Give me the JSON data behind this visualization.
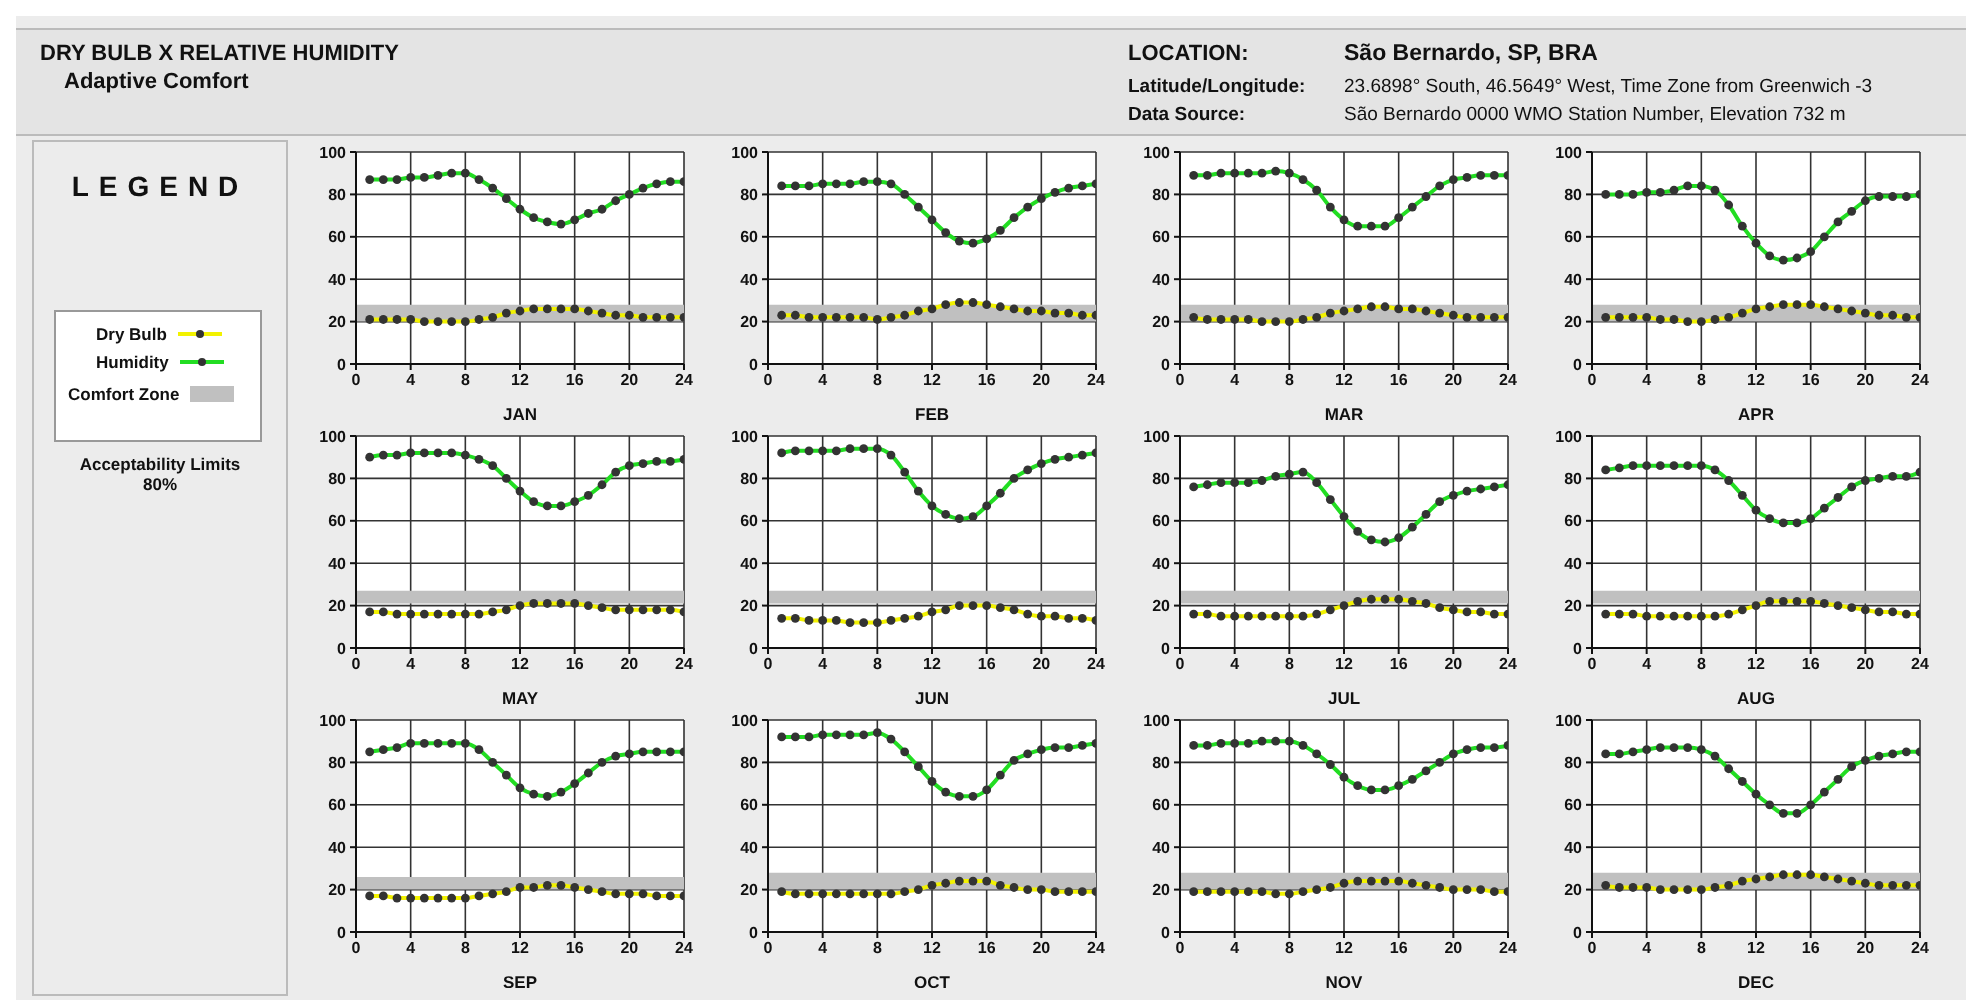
{
  "chart_data": [
    {
      "type": "line",
      "title": "DRY BULB  X  RELATIVE HUMIDITY",
      "subtitle": "Adaptive Comfort",
      "annotations": [
        "LOCATION:",
        "São Bernardo, SP, BRA",
        "Latitude/Longitude:",
        "23.6898° South, 46.5649° West, Time Zone from Greenwich -3",
        "Data Source:",
        "São Bernardo     0000 WMO Station Number, Elevation 732 m",
        "LEGEND",
        "Acceptability Limits 80%"
      ],
      "legend": "left",
      "xlabel": "JAN",
      "x": [
        1,
        2,
        3,
        4,
        5,
        6,
        7,
        8,
        9,
        10,
        11,
        12,
        13,
        14,
        15,
        16,
        17,
        18,
        19,
        20,
        21,
        22,
        23,
        24
      ],
      "xlim": [
        0,
        24
      ],
      "xticks": [
        0,
        4,
        8,
        12,
        16,
        20,
        24
      ],
      "ylim": [
        0,
        100
      ],
      "yticks": [
        0,
        20,
        40,
        60,
        80,
        100
      ],
      "grid": true,
      "marker": "circle",
      "bands": [
        {
          "axis": "y",
          "from": 20,
          "to": 28,
          "label": "Comfort Zone",
          "color": "#c0c0c0"
        }
      ],
      "series": [
        {
          "name": "Dry Bulb",
          "color": "#f2f200",
          "values": [
            21,
            21,
            21,
            21,
            20,
            20,
            20,
            20,
            21,
            22,
            24,
            25,
            26,
            26,
            26,
            26,
            25,
            24,
            23,
            23,
            22,
            22,
            22,
            22
          ]
        },
        {
          "name": "Humidity",
          "color": "#22dd22",
          "values": [
            87,
            87,
            87,
            88,
            88,
            89,
            90,
            90,
            87,
            83,
            78,
            73,
            69,
            67,
            66,
            68,
            71,
            73,
            77,
            80,
            83,
            85,
            86,
            86
          ]
        }
      ]
    },
    {
      "type": "line",
      "xlabel": "FEB",
      "x": [
        1,
        2,
        3,
        4,
        5,
        6,
        7,
        8,
        9,
        10,
        11,
        12,
        13,
        14,
        15,
        16,
        17,
        18,
        19,
        20,
        21,
        22,
        23,
        24
      ],
      "xlim": [
        0,
        24
      ],
      "xticks": [
        0,
        4,
        8,
        12,
        16,
        20,
        24
      ],
      "ylim": [
        0,
        100
      ],
      "yticks": [
        0,
        20,
        40,
        60,
        80,
        100
      ],
      "grid": true,
      "marker": "circle",
      "bands": [
        {
          "axis": "y",
          "from": 20,
          "to": 28,
          "color": "#c0c0c0"
        }
      ],
      "series": [
        {
          "color": "#f2f200",
          "values": [
            23,
            23,
            22,
            22,
            22,
            22,
            22,
            21,
            22,
            23,
            25,
            26,
            28,
            29,
            29,
            28,
            27,
            26,
            25,
            25,
            24,
            24,
            23,
            23
          ]
        },
        {
          "color": "#22dd22",
          "values": [
            84,
            84,
            84,
            85,
            85,
            85,
            86,
            86,
            85,
            80,
            74,
            68,
            62,
            58,
            57,
            59,
            63,
            69,
            74,
            78,
            81,
            83,
            84,
            85
          ]
        }
      ]
    },
    {
      "type": "line",
      "xlabel": "MAR",
      "x": [
        1,
        2,
        3,
        4,
        5,
        6,
        7,
        8,
        9,
        10,
        11,
        12,
        13,
        14,
        15,
        16,
        17,
        18,
        19,
        20,
        21,
        22,
        23,
        24
      ],
      "xlim": [
        0,
        24
      ],
      "xticks": [
        0,
        4,
        8,
        12,
        16,
        20,
        24
      ],
      "ylim": [
        0,
        100
      ],
      "yticks": [
        0,
        20,
        40,
        60,
        80,
        100
      ],
      "grid": true,
      "marker": "circle",
      "bands": [
        {
          "axis": "y",
          "from": 20,
          "to": 28,
          "color": "#c0c0c0"
        }
      ],
      "series": [
        {
          "color": "#f2f200",
          "values": [
            22,
            21,
            21,
            21,
            21,
            20,
            20,
            20,
            21,
            22,
            24,
            25,
            26,
            27,
            27,
            26,
            26,
            25,
            24,
            23,
            22,
            22,
            22,
            22
          ]
        },
        {
          "color": "#22dd22",
          "values": [
            89,
            89,
            90,
            90,
            90,
            90,
            91,
            90,
            87,
            82,
            74,
            68,
            65,
            65,
            65,
            69,
            74,
            79,
            84,
            87,
            88,
            89,
            89,
            89
          ]
        }
      ]
    },
    {
      "type": "line",
      "xlabel": "APR",
      "x": [
        1,
        2,
        3,
        4,
        5,
        6,
        7,
        8,
        9,
        10,
        11,
        12,
        13,
        14,
        15,
        16,
        17,
        18,
        19,
        20,
        21,
        22,
        23,
        24
      ],
      "xlim": [
        0,
        24
      ],
      "xticks": [
        0,
        4,
        8,
        12,
        16,
        20,
        24
      ],
      "ylim": [
        0,
        100
      ],
      "yticks": [
        0,
        20,
        40,
        60,
        80,
        100
      ],
      "grid": true,
      "marker": "circle",
      "bands": [
        {
          "axis": "y",
          "from": 20,
          "to": 28,
          "color": "#c0c0c0"
        }
      ],
      "series": [
        {
          "color": "#f2f200",
          "values": [
            22,
            22,
            22,
            22,
            21,
            21,
            20,
            20,
            21,
            22,
            24,
            26,
            27,
            28,
            28,
            28,
            27,
            26,
            25,
            24,
            23,
            23,
            22,
            22
          ]
        },
        {
          "color": "#22dd22",
          "values": [
            80,
            80,
            80,
            81,
            81,
            82,
            84,
            84,
            82,
            75,
            65,
            57,
            51,
            49,
            50,
            53,
            60,
            67,
            72,
            77,
            79,
            79,
            79,
            80
          ]
        }
      ]
    },
    {
      "type": "line",
      "xlabel": "MAY",
      "x": [
        1,
        2,
        3,
        4,
        5,
        6,
        7,
        8,
        9,
        10,
        11,
        12,
        13,
        14,
        15,
        16,
        17,
        18,
        19,
        20,
        21,
        22,
        23,
        24
      ],
      "xlim": [
        0,
        24
      ],
      "xticks": [
        0,
        4,
        8,
        12,
        16,
        20,
        24
      ],
      "ylim": [
        0,
        100
      ],
      "yticks": [
        0,
        20,
        40,
        60,
        80,
        100
      ],
      "grid": true,
      "marker": "circle",
      "bands": [
        {
          "axis": "y",
          "from": 21,
          "to": 27,
          "color": "#c0c0c0"
        }
      ],
      "series": [
        {
          "color": "#f2f200",
          "values": [
            17,
            17,
            16,
            16,
            16,
            16,
            16,
            16,
            16,
            17,
            18,
            20,
            21,
            21,
            21,
            21,
            20,
            19,
            18,
            18,
            18,
            18,
            18,
            17
          ]
        },
        {
          "color": "#22dd22",
          "values": [
            90,
            91,
            91,
            92,
            92,
            92,
            92,
            91,
            89,
            86,
            80,
            74,
            69,
            67,
            67,
            69,
            72,
            77,
            83,
            86,
            87,
            88,
            88,
            89
          ]
        }
      ]
    },
    {
      "type": "line",
      "xlabel": "JUN",
      "x": [
        1,
        2,
        3,
        4,
        5,
        6,
        7,
        8,
        9,
        10,
        11,
        12,
        13,
        14,
        15,
        16,
        17,
        18,
        19,
        20,
        21,
        22,
        23,
        24
      ],
      "xlim": [
        0,
        24
      ],
      "xticks": [
        0,
        4,
        8,
        12,
        16,
        20,
        24
      ],
      "ylim": [
        0,
        100
      ],
      "yticks": [
        0,
        20,
        40,
        60,
        80,
        100
      ],
      "grid": true,
      "marker": "circle",
      "bands": [
        {
          "axis": "y",
          "from": 21,
          "to": 27,
          "color": "#c0c0c0"
        }
      ],
      "series": [
        {
          "color": "#f2f200",
          "values": [
            14,
            14,
            13,
            13,
            13,
            12,
            12,
            12,
            13,
            14,
            15,
            17,
            18,
            20,
            20,
            20,
            19,
            18,
            16,
            15,
            15,
            14,
            14,
            13
          ]
        },
        {
          "color": "#22dd22",
          "values": [
            92,
            93,
            93,
            93,
            93,
            94,
            94,
            94,
            91,
            83,
            74,
            67,
            63,
            61,
            62,
            67,
            73,
            80,
            84,
            87,
            89,
            90,
            91,
            92
          ]
        }
      ]
    },
    {
      "type": "line",
      "xlabel": "JUL",
      "x": [
        1,
        2,
        3,
        4,
        5,
        6,
        7,
        8,
        9,
        10,
        11,
        12,
        13,
        14,
        15,
        16,
        17,
        18,
        19,
        20,
        21,
        22,
        23,
        24
      ],
      "xlim": [
        0,
        24
      ],
      "xticks": [
        0,
        4,
        8,
        12,
        16,
        20,
        24
      ],
      "ylim": [
        0,
        100
      ],
      "yticks": [
        0,
        20,
        40,
        60,
        80,
        100
      ],
      "grid": true,
      "marker": "circle",
      "bands": [
        {
          "axis": "y",
          "from": 21,
          "to": 27,
          "color": "#c0c0c0"
        }
      ],
      "series": [
        {
          "color": "#f2f200",
          "values": [
            16,
            16,
            15,
            15,
            15,
            15,
            15,
            15,
            15,
            16,
            18,
            20,
            22,
            23,
            23,
            23,
            22,
            21,
            19,
            18,
            17,
            17,
            16,
            16
          ]
        },
        {
          "color": "#22dd22",
          "values": [
            76,
            77,
            78,
            78,
            78,
            79,
            81,
            82,
            83,
            78,
            70,
            62,
            55,
            51,
            50,
            52,
            57,
            63,
            69,
            72,
            74,
            75,
            76,
            77
          ]
        }
      ]
    },
    {
      "type": "line",
      "xlabel": "AUG",
      "x": [
        1,
        2,
        3,
        4,
        5,
        6,
        7,
        8,
        9,
        10,
        11,
        12,
        13,
        14,
        15,
        16,
        17,
        18,
        19,
        20,
        21,
        22,
        23,
        24
      ],
      "xlim": [
        0,
        24
      ],
      "xticks": [
        0,
        4,
        8,
        12,
        16,
        20,
        24
      ],
      "ylim": [
        0,
        100
      ],
      "yticks": [
        0,
        20,
        40,
        60,
        80,
        100
      ],
      "grid": true,
      "marker": "circle",
      "bands": [
        {
          "axis": "y",
          "from": 21,
          "to": 27,
          "color": "#c0c0c0"
        }
      ],
      "series": [
        {
          "color": "#f2f200",
          "values": [
            16,
            16,
            16,
            15,
            15,
            15,
            15,
            15,
            15,
            16,
            18,
            20,
            22,
            22,
            22,
            22,
            21,
            20,
            19,
            18,
            17,
            17,
            16,
            16
          ]
        },
        {
          "color": "#22dd22",
          "values": [
            84,
            85,
            86,
            86,
            86,
            86,
            86,
            86,
            84,
            79,
            72,
            65,
            61,
            59,
            59,
            61,
            66,
            71,
            76,
            79,
            80,
            81,
            81,
            83
          ]
        }
      ]
    },
    {
      "type": "line",
      "xlabel": "SEP",
      "x": [
        1,
        2,
        3,
        4,
        5,
        6,
        7,
        8,
        9,
        10,
        11,
        12,
        13,
        14,
        15,
        16,
        17,
        18,
        19,
        20,
        21,
        22,
        23,
        24
      ],
      "xlim": [
        0,
        24
      ],
      "xticks": [
        0,
        4,
        8,
        12,
        16,
        20,
        24
      ],
      "ylim": [
        0,
        100
      ],
      "yticks": [
        0,
        20,
        40,
        60,
        80,
        100
      ],
      "grid": true,
      "marker": "circle",
      "bands": [
        {
          "axis": "y",
          "from": 20,
          "to": 26,
          "color": "#c0c0c0"
        }
      ],
      "series": [
        {
          "color": "#f2f200",
          "values": [
            17,
            17,
            16,
            16,
            16,
            16,
            16,
            16,
            17,
            18,
            19,
            21,
            21,
            22,
            22,
            21,
            20,
            19,
            18,
            18,
            18,
            17,
            17,
            17
          ]
        },
        {
          "color": "#22dd22",
          "values": [
            85,
            86,
            87,
            89,
            89,
            89,
            89,
            89,
            86,
            80,
            74,
            68,
            65,
            64,
            66,
            70,
            75,
            80,
            83,
            84,
            85,
            85,
            85,
            85
          ]
        }
      ]
    },
    {
      "type": "line",
      "xlabel": "OCT",
      "x": [
        1,
        2,
        3,
        4,
        5,
        6,
        7,
        8,
        9,
        10,
        11,
        12,
        13,
        14,
        15,
        16,
        17,
        18,
        19,
        20,
        21,
        22,
        23,
        24
      ],
      "xlim": [
        0,
        24
      ],
      "xticks": [
        0,
        4,
        8,
        12,
        16,
        20,
        24
      ],
      "ylim": [
        0,
        100
      ],
      "yticks": [
        0,
        20,
        40,
        60,
        80,
        100
      ],
      "grid": true,
      "marker": "circle",
      "bands": [
        {
          "axis": "y",
          "from": 20,
          "to": 28,
          "color": "#c0c0c0"
        }
      ],
      "series": [
        {
          "color": "#f2f200",
          "values": [
            19,
            18,
            18,
            18,
            18,
            18,
            18,
            18,
            18,
            19,
            20,
            22,
            23,
            24,
            24,
            24,
            22,
            21,
            20,
            20,
            19,
            19,
            19,
            19
          ]
        },
        {
          "color": "#22dd22",
          "values": [
            92,
            92,
            92,
            93,
            93,
            93,
            93,
            94,
            91,
            85,
            78,
            71,
            66,
            64,
            64,
            67,
            74,
            81,
            84,
            86,
            87,
            87,
            88,
            89
          ]
        }
      ]
    },
    {
      "type": "line",
      "xlabel": "NOV",
      "x": [
        1,
        2,
        3,
        4,
        5,
        6,
        7,
        8,
        9,
        10,
        11,
        12,
        13,
        14,
        15,
        16,
        17,
        18,
        19,
        20,
        21,
        22,
        23,
        24
      ],
      "xlim": [
        0,
        24
      ],
      "xticks": [
        0,
        4,
        8,
        12,
        16,
        20,
        24
      ],
      "ylim": [
        0,
        100
      ],
      "yticks": [
        0,
        20,
        40,
        60,
        80,
        100
      ],
      "grid": true,
      "marker": "circle",
      "bands": [
        {
          "axis": "y",
          "from": 20,
          "to": 28,
          "color": "#c0c0c0"
        }
      ],
      "series": [
        {
          "color": "#f2f200",
          "values": [
            19,
            19,
            19,
            19,
            19,
            19,
            18,
            18,
            19,
            20,
            21,
            23,
            24,
            24,
            24,
            24,
            23,
            22,
            21,
            20,
            20,
            20,
            19,
            19
          ]
        },
        {
          "color": "#22dd22",
          "values": [
            88,
            88,
            89,
            89,
            89,
            90,
            90,
            90,
            88,
            84,
            79,
            73,
            69,
            67,
            67,
            69,
            72,
            76,
            80,
            84,
            86,
            87,
            87,
            88
          ]
        }
      ]
    },
    {
      "type": "line",
      "xlabel": "DEC",
      "x": [
        1,
        2,
        3,
        4,
        5,
        6,
        7,
        8,
        9,
        10,
        11,
        12,
        13,
        14,
        15,
        16,
        17,
        18,
        19,
        20,
        21,
        22,
        23,
        24
      ],
      "xlim": [
        0,
        24
      ],
      "xticks": [
        0,
        4,
        8,
        12,
        16,
        20,
        24
      ],
      "ylim": [
        0,
        100
      ],
      "yticks": [
        0,
        20,
        40,
        60,
        80,
        100
      ],
      "grid": true,
      "marker": "circle",
      "bands": [
        {
          "axis": "y",
          "from": 20,
          "to": 28,
          "color": "#c0c0c0"
        }
      ],
      "series": [
        {
          "color": "#f2f200",
          "values": [
            22,
            21,
            21,
            21,
            20,
            20,
            20,
            20,
            21,
            22,
            24,
            25,
            26,
            27,
            27,
            27,
            26,
            25,
            24,
            23,
            22,
            22,
            22,
            22
          ]
        },
        {
          "color": "#22dd22",
          "values": [
            84,
            84,
            85,
            86,
            87,
            87,
            87,
            86,
            83,
            77,
            71,
            65,
            60,
            56,
            56,
            60,
            66,
            72,
            78,
            81,
            83,
            84,
            85,
            85
          ]
        }
      ]
    }
  ]
}
